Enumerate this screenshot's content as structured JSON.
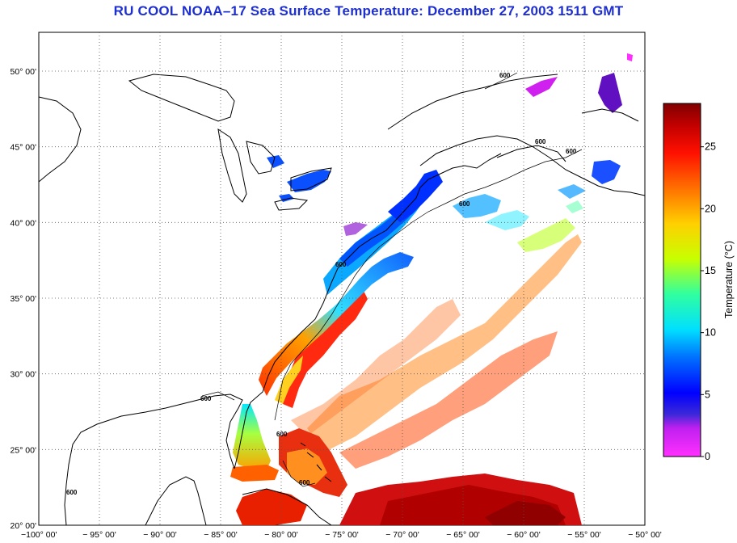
{
  "title": "RU COOL  NOAA–17  Sea Surface Temperature:  December 27, 2003 1511 GMT",
  "map": {
    "lat_labels": [
      {
        "deg": 50,
        "text": "50° 00'"
      },
      {
        "deg": 45,
        "text": "45° 00'"
      },
      {
        "deg": 40,
        "text": "40° 00'"
      },
      {
        "deg": 35,
        "text": "35° 00'"
      },
      {
        "deg": 30,
        "text": "30° 00'"
      },
      {
        "deg": 25,
        "text": "25° 00'"
      },
      {
        "deg": 20,
        "text": "20° 00'"
      }
    ],
    "lon_labels": [
      {
        "deg": -100,
        "text": "−100° 00'"
      },
      {
        "deg": -95,
        "text": "− 95° 00'"
      },
      {
        "deg": -90,
        "text": "− 90° 00'"
      },
      {
        "deg": -85,
        "text": "− 85° 00'"
      },
      {
        "deg": -80,
        "text": "− 80° 00'"
      },
      {
        "deg": -75,
        "text": "− 75° 00'"
      },
      {
        "deg": -70,
        "text": "− 70° 00'"
      },
      {
        "deg": -65,
        "text": "− 65° 00'"
      },
      {
        "deg": -60,
        "text": "− 60° 00'"
      },
      {
        "deg": -55,
        "text": "− 55° 00'"
      },
      {
        "deg": -50,
        "text": "− 50° 00'"
      }
    ],
    "lon_range": [
      -100,
      -50
    ],
    "lat_range": [
      20,
      52
    ],
    "grid": "dotted",
    "isobath_label": "600"
  },
  "colorbar": {
    "label": "Temperature (°C)",
    "ticks": [
      {
        "value": 0,
        "text": "0"
      },
      {
        "value": 5,
        "text": "5"
      },
      {
        "value": 10,
        "text": "10"
      },
      {
        "value": 15,
        "text": "15"
      },
      {
        "value": 20,
        "text": "20"
      },
      {
        "value": 25,
        "text": "25"
      }
    ],
    "range": [
      0,
      28.5
    ],
    "colors": [
      "#ff2cff",
      "#b020e0",
      "#3c28d8",
      "#0000ff",
      "#0090ff",
      "#00f0ff",
      "#30ff90",
      "#e8ff00",
      "#ffb000",
      "#ff4000",
      "#e00000",
      "#8a0000"
    ]
  }
}
